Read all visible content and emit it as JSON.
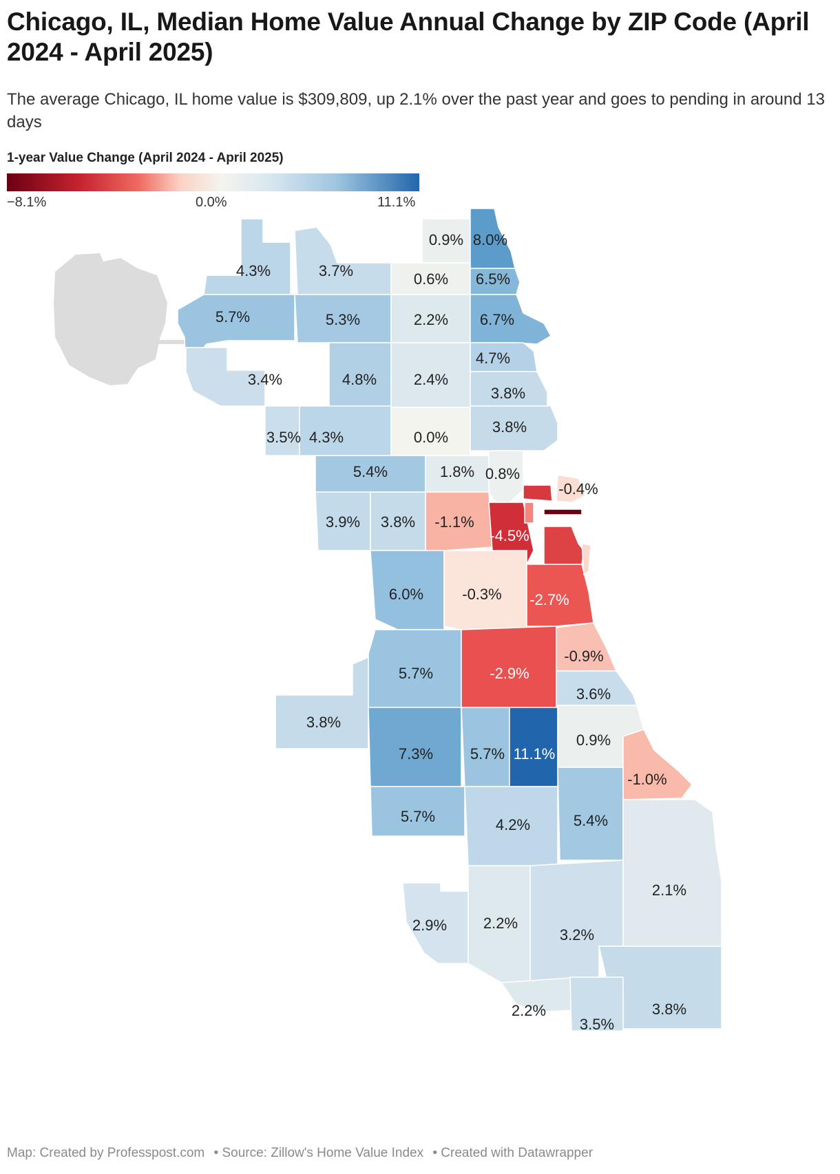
{
  "title": "Chicago, IL, Median Home Value Annual Change by ZIP Code (April 2024 - April 2025)",
  "subtitle": "The average Chicago, IL home value is $309,809, up 2.1% over the past year and goes to pending in around 13 days",
  "legend": {
    "title": "1-year Value Change (April 2024 - April 2025)",
    "min_label": "−8.1%",
    "mid_label": "0.0%",
    "max_label": "11.1%",
    "min_value": -8.1,
    "mid_value": 0.0,
    "max_value": 11.1,
    "colors": [
      "#6b0013",
      "#c8242f",
      "#ee6b62",
      "#fbd2c4",
      "#f4f4ee",
      "#d8e6f0",
      "#9ec5df",
      "#2166ac"
    ]
  },
  "map": {
    "regions": [
      {
        "label": "0.9%",
        "value": 0.9
      },
      {
        "label": "8.0%",
        "value": 8.0
      },
      {
        "label": "4.3%",
        "value": 4.3
      },
      {
        "label": "3.7%",
        "value": 3.7
      },
      {
        "label": "0.6%",
        "value": 0.6
      },
      {
        "label": "6.5%",
        "value": 6.5
      },
      {
        "label": "5.7%",
        "value": 5.7
      },
      {
        "label": "5.3%",
        "value": 5.3
      },
      {
        "label": "2.2%",
        "value": 2.2
      },
      {
        "label": "6.7%",
        "value": 6.7
      },
      {
        "label": "4.7%",
        "value": 4.7
      },
      {
        "label": "3.4%",
        "value": 3.4
      },
      {
        "label": "4.8%",
        "value": 4.8
      },
      {
        "label": "2.4%",
        "value": 2.4
      },
      {
        "label": "3.8%",
        "value": 3.8
      },
      {
        "label": "3.5%",
        "value": 3.5
      },
      {
        "label": "4.3%",
        "value": 4.3
      },
      {
        "label": "0.0%",
        "value": 0.0
      },
      {
        "label": "3.8%",
        "value": 3.8
      },
      {
        "label": "5.4%",
        "value": 5.4
      },
      {
        "label": "1.8%",
        "value": 1.8
      },
      {
        "label": "0.8%",
        "value": 0.8
      },
      {
        "label": "-0.4%",
        "value": -0.4
      },
      {
        "label": "3.9%",
        "value": 3.9
      },
      {
        "label": "3.8%",
        "value": 3.8
      },
      {
        "label": "-1.1%",
        "value": -1.1
      },
      {
        "label": "-4.5%",
        "value": -4.5
      },
      {
        "label": "6.0%",
        "value": 6.0
      },
      {
        "label": "-0.3%",
        "value": -0.3
      },
      {
        "label": "-2.7%",
        "value": -2.7
      },
      {
        "label": "5.7%",
        "value": 5.7
      },
      {
        "label": "-2.9%",
        "value": -2.9
      },
      {
        "label": "-0.9%",
        "value": -0.9
      },
      {
        "label": "3.6%",
        "value": 3.6
      },
      {
        "label": "3.8%",
        "value": 3.8
      },
      {
        "label": "7.3%",
        "value": 7.3
      },
      {
        "label": "5.7%",
        "value": 5.7
      },
      {
        "label": "11.1%",
        "value": 11.1
      },
      {
        "label": "0.9%",
        "value": 0.9
      },
      {
        "label": "-1.0%",
        "value": -1.0
      },
      {
        "label": "5.7%",
        "value": 5.7
      },
      {
        "label": "4.2%",
        "value": 4.2
      },
      {
        "label": "5.4%",
        "value": 5.4
      },
      {
        "label": "2.1%",
        "value": 2.1
      },
      {
        "label": "2.9%",
        "value": 2.9
      },
      {
        "label": "2.2%",
        "value": 2.2
      },
      {
        "label": "3.2%",
        "value": 3.2
      },
      {
        "label": "2.2%",
        "value": 2.2
      },
      {
        "label": "3.8%",
        "value": 3.8
      },
      {
        "label": "3.5%",
        "value": 3.5
      }
    ],
    "unlabeled_regions": [
      {
        "value": -8.1
      },
      {
        "value": -3.6
      },
      {
        "value": -4.0
      },
      {
        "value": -1.8
      },
      {
        "value": -0.5
      }
    ],
    "no_data_color": "#dcdcdc"
  },
  "footer": {
    "credit": "Map: Created by Professpost.com",
    "source": "• Source: Zillow's Home Value Index",
    "tool": "• Created with Datawrapper"
  }
}
